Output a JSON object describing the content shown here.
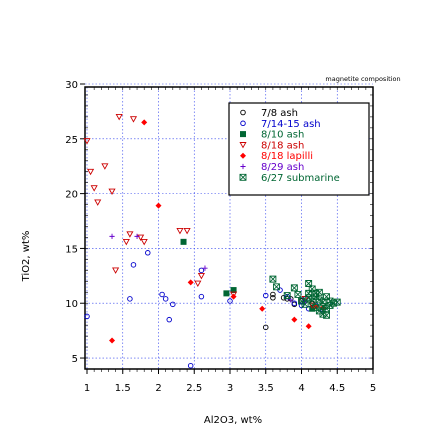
{
  "chart_data": {
    "type": "scatter",
    "title": "magnetite composition",
    "xlabel": "Al2O3, wt%",
    "ylabel": "TiO2, wt%",
    "xlim": [
      1,
      5
    ],
    "ylim": [
      4,
      30
    ],
    "x_ticks": [
      "1",
      "1.5",
      "2",
      "2.5",
      "3",
      "3.5",
      "4",
      "4.5",
      "5"
    ],
    "y_ticks": [
      "5",
      "10",
      "15",
      "20",
      "25",
      "30"
    ],
    "grid": true,
    "legend_position": "top-right",
    "series": [
      {
        "name": "7/8 ash",
        "marker": "circle-open",
        "color": "#000000",
        "points": [
          [
            3.6,
            10.8
          ],
          [
            3.75,
            10.5
          ],
          [
            3.85,
            10.4
          ],
          [
            4.0,
            10.2
          ],
          [
            4.15,
            10.0
          ],
          [
            3.5,
            7.8
          ],
          [
            3.6,
            10.5
          ],
          [
            3.8,
            10.4
          ],
          [
            3.9,
            9.9
          ]
        ]
      },
      {
        "name": "7/14-15 ash",
        "marker": "circle-open",
        "color": "#0000cc",
        "points": [
          [
            1.0,
            8.8
          ],
          [
            1.6,
            10.4
          ],
          [
            1.65,
            13.5
          ],
          [
            1.85,
            14.6
          ],
          [
            2.05,
            10.8
          ],
          [
            2.1,
            10.4
          ],
          [
            2.15,
            8.5
          ],
          [
            2.2,
            9.9
          ],
          [
            2.45,
            4.3
          ],
          [
            2.6,
            13.0
          ],
          [
            2.6,
            10.6
          ],
          [
            3.0,
            10.2
          ],
          [
            3.5,
            10.7
          ],
          [
            3.7,
            11.2
          ],
          [
            3.8,
            10.6
          ],
          [
            3.9,
            10.0
          ],
          [
            4.0,
            9.8
          ],
          [
            4.05,
            10.4
          ],
          [
            4.1,
            9.5
          ],
          [
            4.2,
            9.8
          ],
          [
            4.3,
            9.4
          ]
        ]
      },
      {
        "name": "8/10 ash",
        "marker": "square-filled",
        "color": "#006633",
        "points": [
          [
            2.35,
            15.6
          ],
          [
            2.95,
            10.9
          ],
          [
            3.05,
            11.2
          ],
          [
            4.15,
            9.5
          ]
        ]
      },
      {
        "name": "8/18 ash",
        "marker": "triangle-down-open",
        "color": "#cc0000",
        "points": [
          [
            1.0,
            24.8
          ],
          [
            1.05,
            22.0
          ],
          [
            1.1,
            20.5
          ],
          [
            1.15,
            19.2
          ],
          [
            1.25,
            22.5
          ],
          [
            1.35,
            20.2
          ],
          [
            1.4,
            13.0
          ],
          [
            1.45,
            27.0
          ],
          [
            1.55,
            15.6
          ],
          [
            1.6,
            16.3
          ],
          [
            1.65,
            26.8
          ],
          [
            1.75,
            16.0
          ],
          [
            1.8,
            15.6
          ],
          [
            2.3,
            16.6
          ],
          [
            2.4,
            16.6
          ],
          [
            2.55,
            11.8
          ],
          [
            2.6,
            12.5
          ],
          [
            3.05,
            10.8
          ],
          [
            4.05,
            10.4
          ],
          [
            4.15,
            9.8
          ]
        ]
      },
      {
        "name": "8/18 lapilli",
        "marker": "diamond-filled",
        "color": "#ff0000",
        "points": [
          [
            1.35,
            6.6
          ],
          [
            1.8,
            26.5
          ],
          [
            2.0,
            18.9
          ],
          [
            2.45,
            11.9
          ],
          [
            3.05,
            10.6
          ],
          [
            3.45,
            9.5
          ],
          [
            3.9,
            8.5
          ],
          [
            4.1,
            7.9
          ],
          [
            4.2,
            9.7
          ],
          [
            4.3,
            9.6
          ]
        ]
      },
      {
        "name": "8/29 ash",
        "marker": "plus",
        "color": "#6600cc",
        "points": [
          [
            1.35,
            16.1
          ],
          [
            1.7,
            16.1
          ],
          [
            2.65,
            13.2
          ],
          [
            3.85,
            10.3
          ],
          [
            4.05,
            10.1
          ]
        ]
      },
      {
        "name": "6/27 submarine",
        "marker": "square-x-open",
        "color": "#006633",
        "points": [
          [
            3.6,
            12.2
          ],
          [
            3.65,
            11.5
          ],
          [
            3.8,
            10.7
          ],
          [
            3.9,
            11.4
          ],
          [
            3.95,
            10.8
          ],
          [
            4.0,
            10.2
          ],
          [
            4.05,
            9.9
          ],
          [
            4.1,
            11.8
          ],
          [
            4.1,
            10.9
          ],
          [
            4.15,
            11.3
          ],
          [
            4.15,
            10.2
          ],
          [
            4.2,
            10.6
          ],
          [
            4.2,
            9.6
          ],
          [
            4.25,
            11.0
          ],
          [
            4.25,
            10.3
          ],
          [
            4.25,
            9.3
          ],
          [
            4.3,
            10.1
          ],
          [
            4.3,
            9.7
          ],
          [
            4.35,
            10.6
          ],
          [
            4.35,
            9.5
          ],
          [
            4.35,
            8.9
          ],
          [
            4.4,
            10.2
          ],
          [
            4.4,
            9.8
          ],
          [
            4.45,
            10.0
          ],
          [
            4.5,
            10.1
          ],
          [
            4.3,
            9.0
          ],
          [
            4.2,
            10.9
          ],
          [
            4.1,
            10.5
          ]
        ]
      }
    ]
  }
}
